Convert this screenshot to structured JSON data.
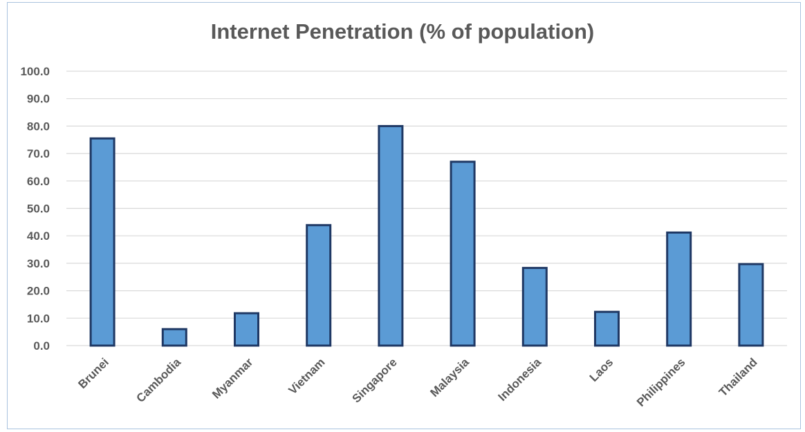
{
  "chart_data": {
    "type": "bar",
    "title": "Internet Penetration (% of population)",
    "xlabel": "",
    "ylabel": "",
    "categories": [
      "Brunei",
      "Cambodia",
      "Myanmar",
      "Vietnam",
      "Singapore",
      "Malaysia",
      "Indonesia",
      "Laos",
      "Philippines",
      "Thailand"
    ],
    "values": [
      75.5,
      6.0,
      11.8,
      43.9,
      80.0,
      67.0,
      28.3,
      12.3,
      41.2,
      29.7
    ],
    "ylim": [
      0,
      100
    ],
    "yticks": [
      "0.0",
      "10.0",
      "20.0",
      "30.0",
      "40.0",
      "50.0",
      "60.0",
      "70.0",
      "80.0",
      "90.0",
      "100.0"
    ],
    "grid": true,
    "legend": "none",
    "colors": {
      "bar_fill": "#5b9bd5",
      "bar_stroke": "#1f3864",
      "grid": "#d9d9d9",
      "text": "#595959"
    }
  }
}
